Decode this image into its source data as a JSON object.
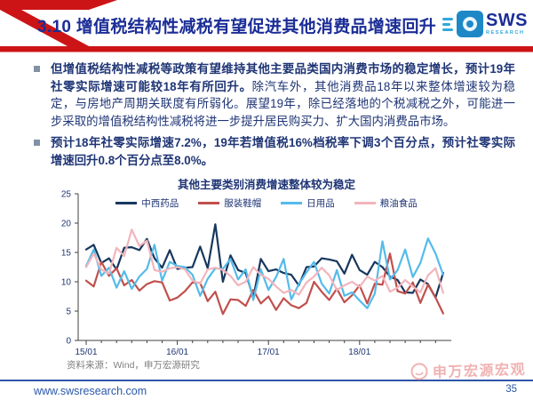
{
  "header": {
    "title": "3.10 增值税结构性减税有望促进其他消费品增速回升",
    "logo": {
      "name": "SWS",
      "sub": "RESEARCH"
    }
  },
  "bullets": [
    {
      "bold": "但增值税结构性减税等政策有望维持其他主要品类国内消费市场的稳定增长，预计19年社零实际增速可能较18年有所回升。",
      "regular": "除汽车外，其他消费品18年以来整体增速较为稳定，与房地产周期关联度有所弱化。展望19年，除已经落地的个税减税之外，可能进一步采取的增值税结构性减税将进一步提升居民购买力、扩大国内消费品市场。"
    },
    {
      "bold": "预计18年社零实际增速7.2%，19年若增值税16%档税率下调3个百分点，预计社零实际增速回升0.8个百分点至8.0%。",
      "regular": ""
    }
  ],
  "chart_data": {
    "type": "line",
    "title": "其他主要类别消费增速整体较为稳定",
    "xlabel": "",
    "ylabel": "",
    "ylim": [
      0,
      25
    ],
    "yticks": [
      0,
      5,
      10,
      15,
      20,
      25
    ],
    "grid": false,
    "legend_position": "top",
    "x": [
      "15/01",
      "15/02",
      "15/03",
      "15/04",
      "15/05",
      "15/06",
      "15/07",
      "15/08",
      "15/09",
      "15/10",
      "15/11",
      "15/12",
      "16/01",
      "16/02",
      "16/03",
      "16/04",
      "16/05",
      "16/06",
      "16/07",
      "16/08",
      "16/09",
      "16/10",
      "16/11",
      "16/12",
      "17/01",
      "17/02",
      "17/03",
      "17/04",
      "17/05",
      "17/06",
      "17/07",
      "17/08",
      "17/09",
      "17/10",
      "17/11",
      "17/12",
      "18/01",
      "18/02",
      "18/03",
      "18/04",
      "18/05",
      "18/06",
      "18/07",
      "18/08",
      "18/09",
      "18/10",
      "18/11",
      "18/12"
    ],
    "xticks_shown": [
      "15/01",
      "16/01",
      "17/01",
      "18/01"
    ],
    "series": [
      {
        "name": "中西药品",
        "color": "#17375e",
        "values": [
          15.5,
          16.3,
          13.2,
          14.0,
          12.1,
          15.8,
          15.9,
          15.4,
          17.3,
          14.0,
          12.4,
          15.4,
          12.2,
          12.4,
          12.5,
          16.0,
          12.3,
          19.8,
          10.0,
          14.5,
          12.0,
          11.5,
          7.3,
          13.9,
          11.8,
          12.1,
          11.5,
          11.2,
          9.4,
          12.5,
          12.6,
          14.0,
          13.8,
          13.5,
          11.4,
          14.6,
          12.0,
          11.2,
          13.4,
          12.5,
          10.9,
          10.3,
          8.2,
          8.1,
          10.4,
          9.6,
          7.3,
          11.5
        ]
      },
      {
        "name": "服装鞋帽",
        "color": "#c0504d",
        "values": [
          10.2,
          9.2,
          13.4,
          11.0,
          12.3,
          9.4,
          10.3,
          8.5,
          9.6,
          10.1,
          9.9,
          6.8,
          7.3,
          8.4,
          9.9,
          9.8,
          6.7,
          8.3,
          4.5,
          7.0,
          6.9,
          5.9,
          8.6,
          6.3,
          7.5,
          5.2,
          7.2,
          6.0,
          5.5,
          6.4,
          10.0,
          8.3,
          6.9,
          8.8,
          6.5,
          7.7,
          9.4,
          6.3,
          9.7,
          9.5,
          14.8,
          8.4,
          8.0,
          9.9,
          6.4,
          9.5,
          7.3,
          4.6
        ]
      },
      {
        "name": "日用品",
        "color": "#54bbea",
        "values": [
          12.7,
          15.5,
          11.0,
          12.4,
          9.0,
          11.8,
          8.8,
          10.9,
          12.2,
          16.3,
          10.2,
          13.4,
          12.7,
          12.5,
          11.2,
          7.6,
          10.5,
          12.3,
          12.2,
          13.9,
          10.4,
          12.1,
          6.9,
          12.1,
          8.6,
          10.8,
          13.9,
          7.0,
          9.6,
          11.6,
          13.4,
          9.7,
          8.0,
          12.0,
          7.6,
          8.2,
          6.8,
          5.5,
          8.0,
          16.9,
          10.4,
          12.0,
          15.5,
          10.8,
          13.2,
          17.4,
          14.8,
          11.2
        ]
      },
      {
        "name": "粮油食品",
        "color": "#f2b5bc",
        "values": [
          12.5,
          14.8,
          12.1,
          11.4,
          15.8,
          14.4,
          18.9,
          16.1,
          17.0,
          12.0,
          11.7,
          12.3,
          12.5,
          12.1,
          10.2,
          9.7,
          12.1,
          12.4,
          12.0,
          11.0,
          9.4,
          10.0,
          12.5,
          11.2,
          10.5,
          9.2,
          8.1,
          8.6,
          7.8,
          9.9,
          10.9,
          12.4,
          11.1,
          8.6,
          9.4,
          10.0,
          9.1,
          10.9,
          10.2,
          11.0,
          8.3,
          9.0,
          10.3,
          9.2,
          8.2,
          11.1,
          12.3,
          8.1
        ]
      }
    ]
  },
  "source": "资料来源：Wind，申万宏源研究",
  "footer": {
    "url": "www.swsresearch.com",
    "page": "35",
    "stamp": "申万宏源宏观"
  },
  "colors": {
    "ribbon_red": "#cc1417",
    "title_blue": "#1b2d96",
    "body_navy": "#1f3575",
    "footer_blue": "#2b57a8",
    "source_gray": "#7f7f7f",
    "stamp_pink": "#eda0a0"
  }
}
